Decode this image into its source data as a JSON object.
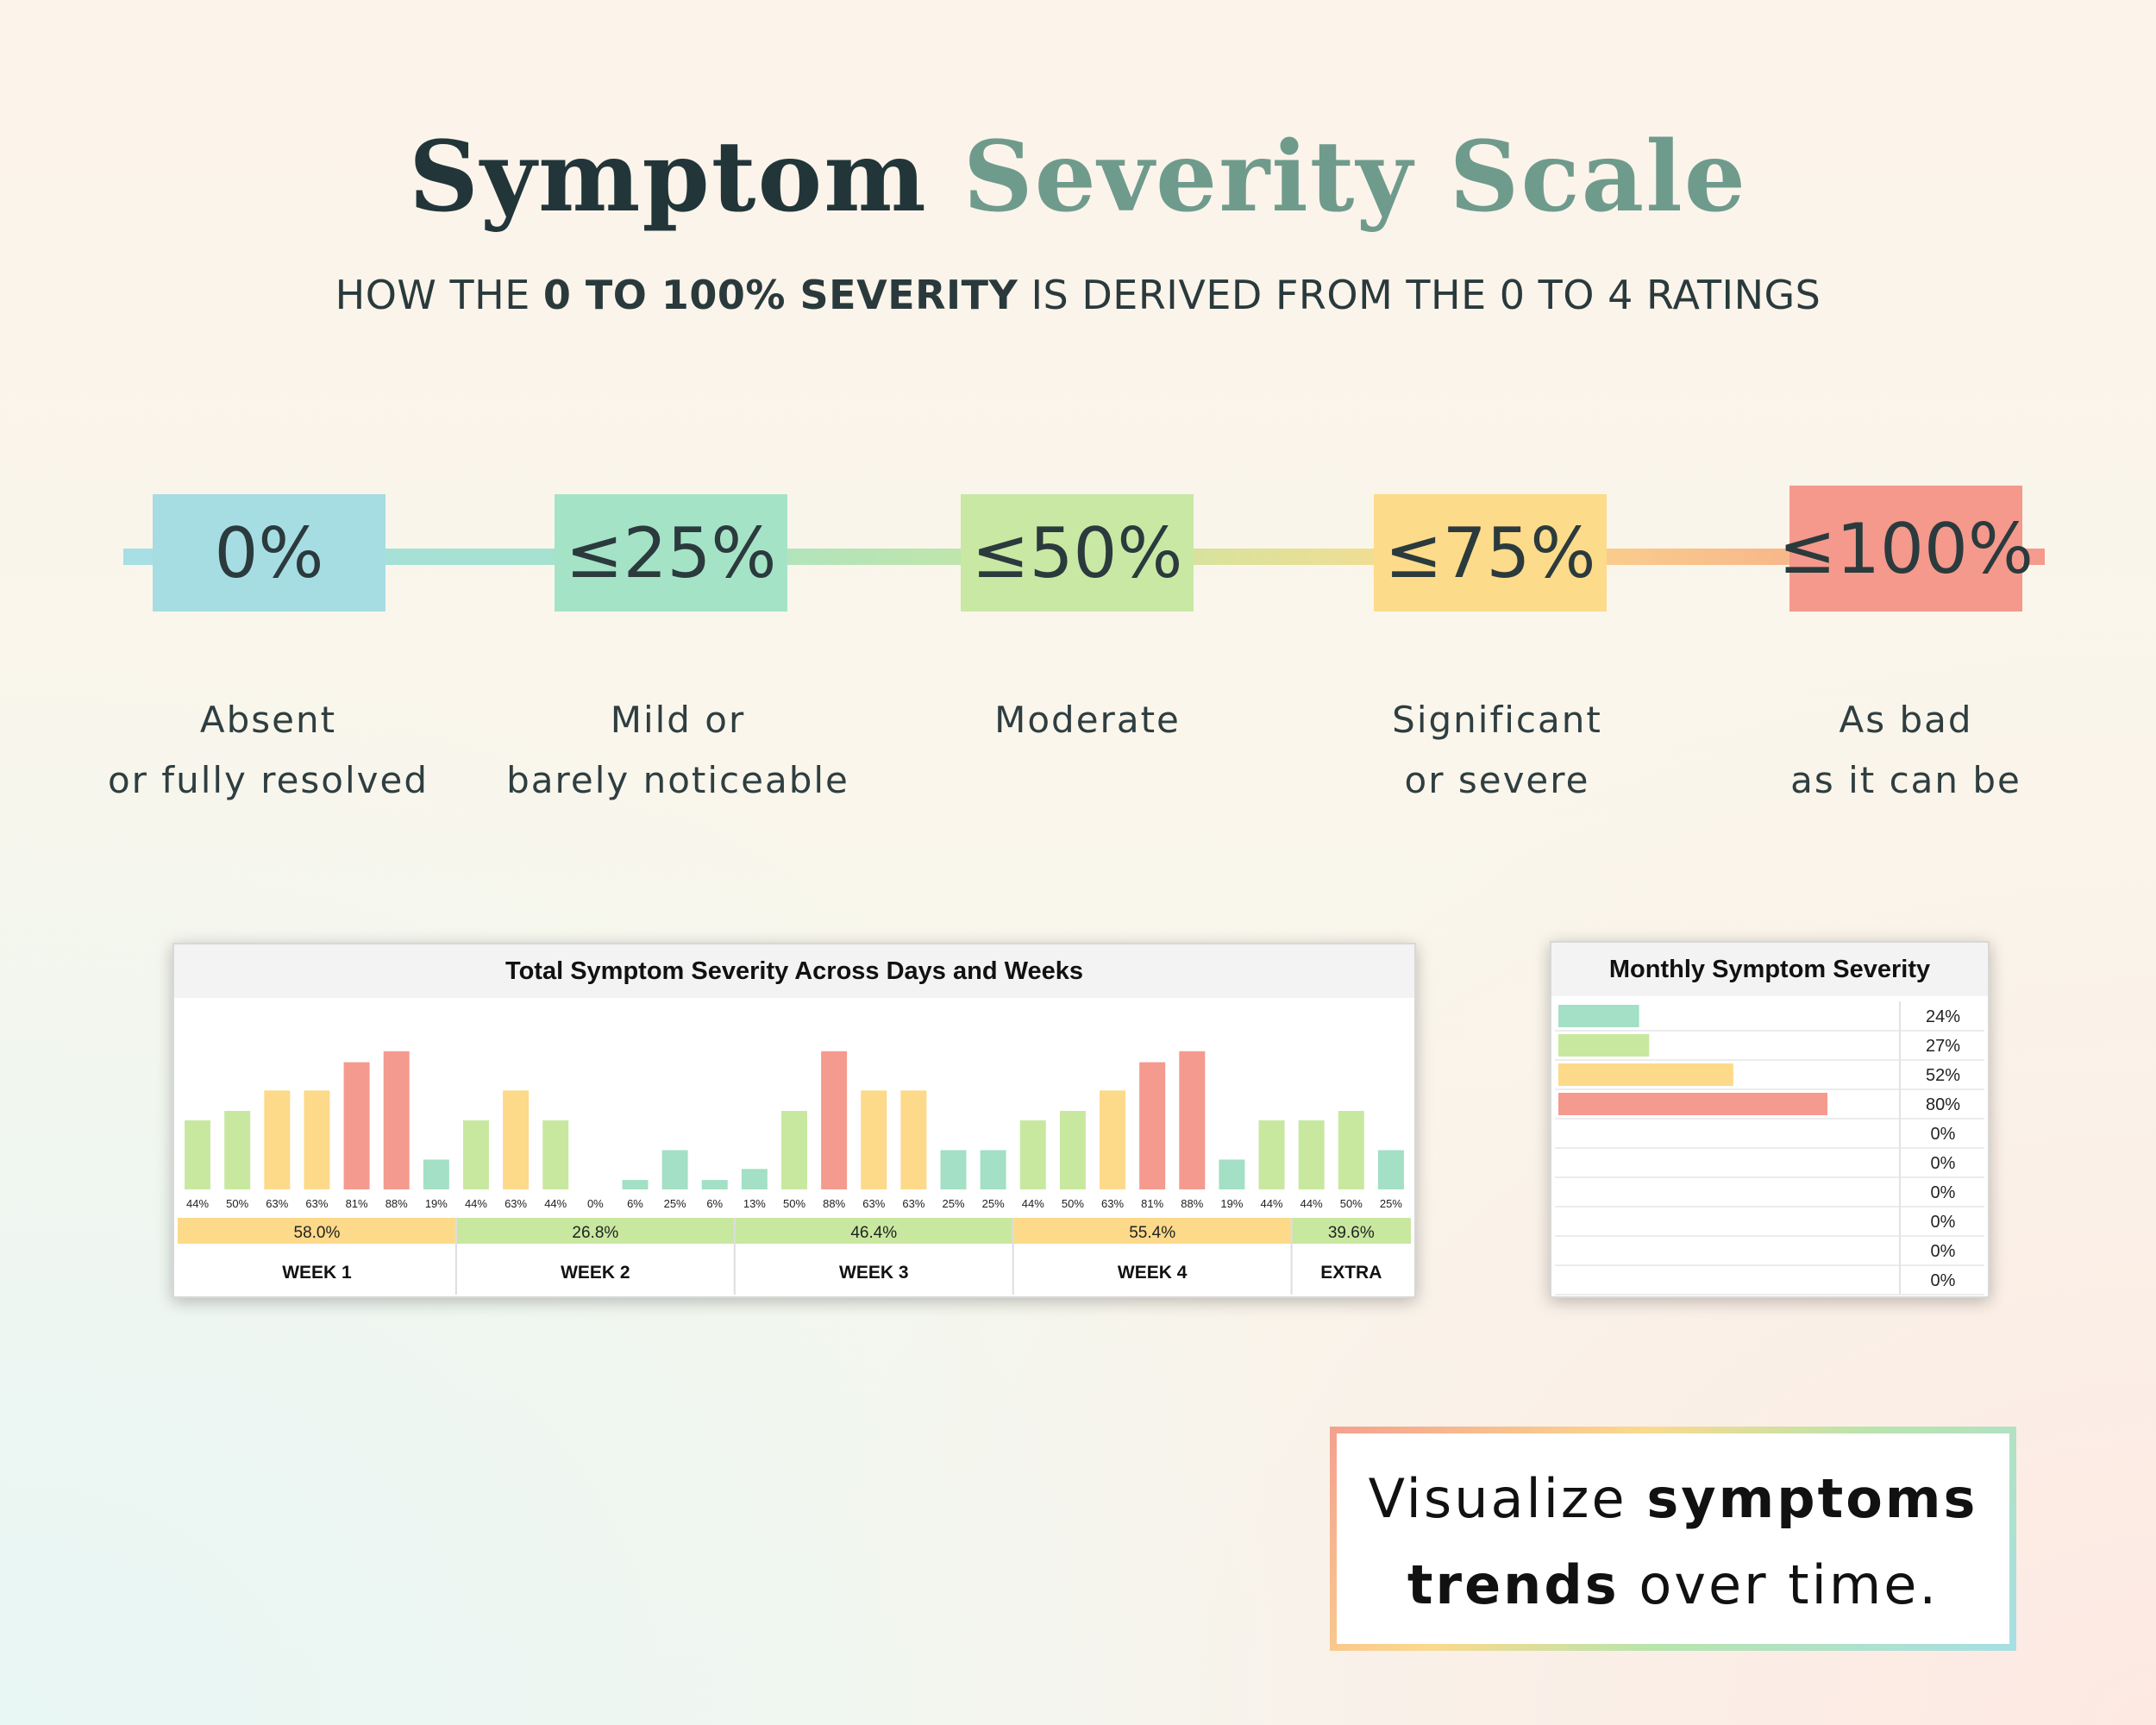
{
  "title": {
    "part1": "Symptom",
    "part2": "Severity Scale"
  },
  "subtitle": {
    "pre": "HOW THE ",
    "bold": "0 TO 100% SEVERITY",
    "post": " IS DERIVED FROM THE 0 TO 4 RATINGS"
  },
  "scale": [
    {
      "value": "0%",
      "label1": "Absent",
      "label2": "or fully resolved",
      "color": "#a6dde3"
    },
    {
      "value": "≤25%",
      "label1": "Mild or",
      "label2": "barely noticeable",
      "color": "#a5e3c7"
    },
    {
      "value": "≤50%",
      "label1": "Moderate",
      "label2": "",
      "color": "#c9e8a4"
    },
    {
      "value": "≤75%",
      "label1": "Significant",
      "label2": "or severe",
      "color": "#fcdb8a"
    },
    {
      "value": "≤100%",
      "label1": "As bad",
      "label2": "as it can be",
      "color": "#f4998b"
    }
  ],
  "colors": {
    "green": "#a3e0c5",
    "lime": "#c8e8a0",
    "yellow": "#fdd98a",
    "red": "#f59a8e"
  },
  "chart_data": [
    {
      "type": "bar",
      "title": "Total Symptom Severity Across Days and Weeks",
      "values": [
        44,
        50,
        63,
        63,
        81,
        88,
        19,
        44,
        63,
        44,
        0,
        6,
        25,
        6,
        13,
        50,
        88,
        63,
        63,
        25,
        25,
        44,
        50,
        63,
        81,
        88,
        19,
        44,
        44,
        50,
        25
      ],
      "labels": [
        "44%",
        "50%",
        "63%",
        "63%",
        "81%",
        "88%",
        "19%",
        "44%",
        "63%",
        "44%",
        "0%",
        "6%",
        "25%",
        "6%",
        "13%",
        "50%",
        "88%",
        "63%",
        "63%",
        "25%",
        "25%",
        "44%",
        "50%",
        "63%",
        "81%",
        "88%",
        "19%",
        "44%",
        "44%",
        "50%",
        "25%"
      ],
      "ylim": [
        0,
        100
      ],
      "weeks": [
        {
          "name": "WEEK 1",
          "avg": "58.0%",
          "days": 7
        },
        {
          "name": "WEEK 2",
          "avg": "26.8%",
          "days": 7
        },
        {
          "name": "WEEK 3",
          "avg": "46.4%",
          "days": 7
        },
        {
          "name": "WEEK 4",
          "avg": "55.4%",
          "days": 7
        },
        {
          "name": "EXTRA",
          "avg": "39.6%",
          "days": 3
        }
      ]
    },
    {
      "type": "bar",
      "orientation": "horizontal",
      "title": "Monthly Symptom Severity",
      "values": [
        24,
        27,
        52,
        80,
        0,
        0,
        0,
        0,
        0,
        0
      ],
      "labels": [
        "24%",
        "27%",
        "52%",
        "80%",
        "0%",
        "0%",
        "0%",
        "0%",
        "0%",
        "0%"
      ],
      "xlim": [
        0,
        100
      ]
    }
  ],
  "cta": {
    "line1_pre": "Visualize ",
    "line1_bold": "symptoms",
    "line2_bold": "trends",
    "line2_post": " over time."
  }
}
